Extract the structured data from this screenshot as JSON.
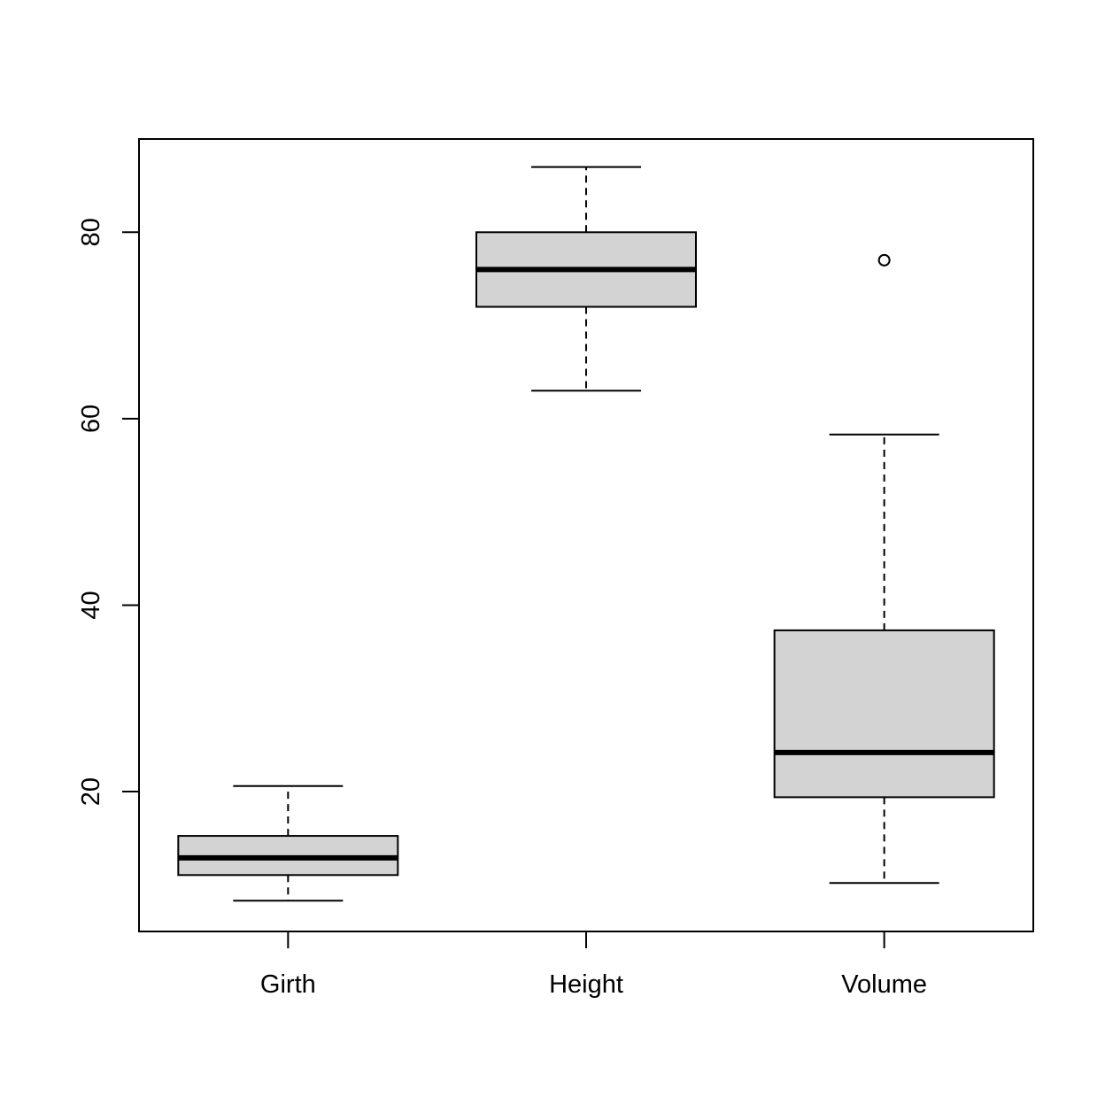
{
  "chart_data": {
    "type": "box",
    "title": "",
    "xlabel": "",
    "ylabel": "",
    "ylim": [
      5,
      90
    ],
    "yticks": [
      20,
      40,
      60,
      80
    ],
    "grid": false,
    "box_fill": "#d3d3d3",
    "line_color": "#000000",
    "categories": [
      "Girth",
      "Height",
      "Volume"
    ],
    "boxes": [
      {
        "name": "Girth",
        "whisker_low": 8.3,
        "q1": 11.05,
        "median": 12.9,
        "q3": 15.25,
        "whisker_high": 20.6,
        "outliers": []
      },
      {
        "name": "Height",
        "whisker_low": 63,
        "q1": 72,
        "median": 76,
        "q3": 80,
        "whisker_high": 87,
        "outliers": []
      },
      {
        "name": "Volume",
        "whisker_low": 10.2,
        "q1": 19.4,
        "median": 24.2,
        "q3": 37.3,
        "whisker_high": 58.3,
        "outliers": [
          77.0
        ]
      }
    ]
  }
}
